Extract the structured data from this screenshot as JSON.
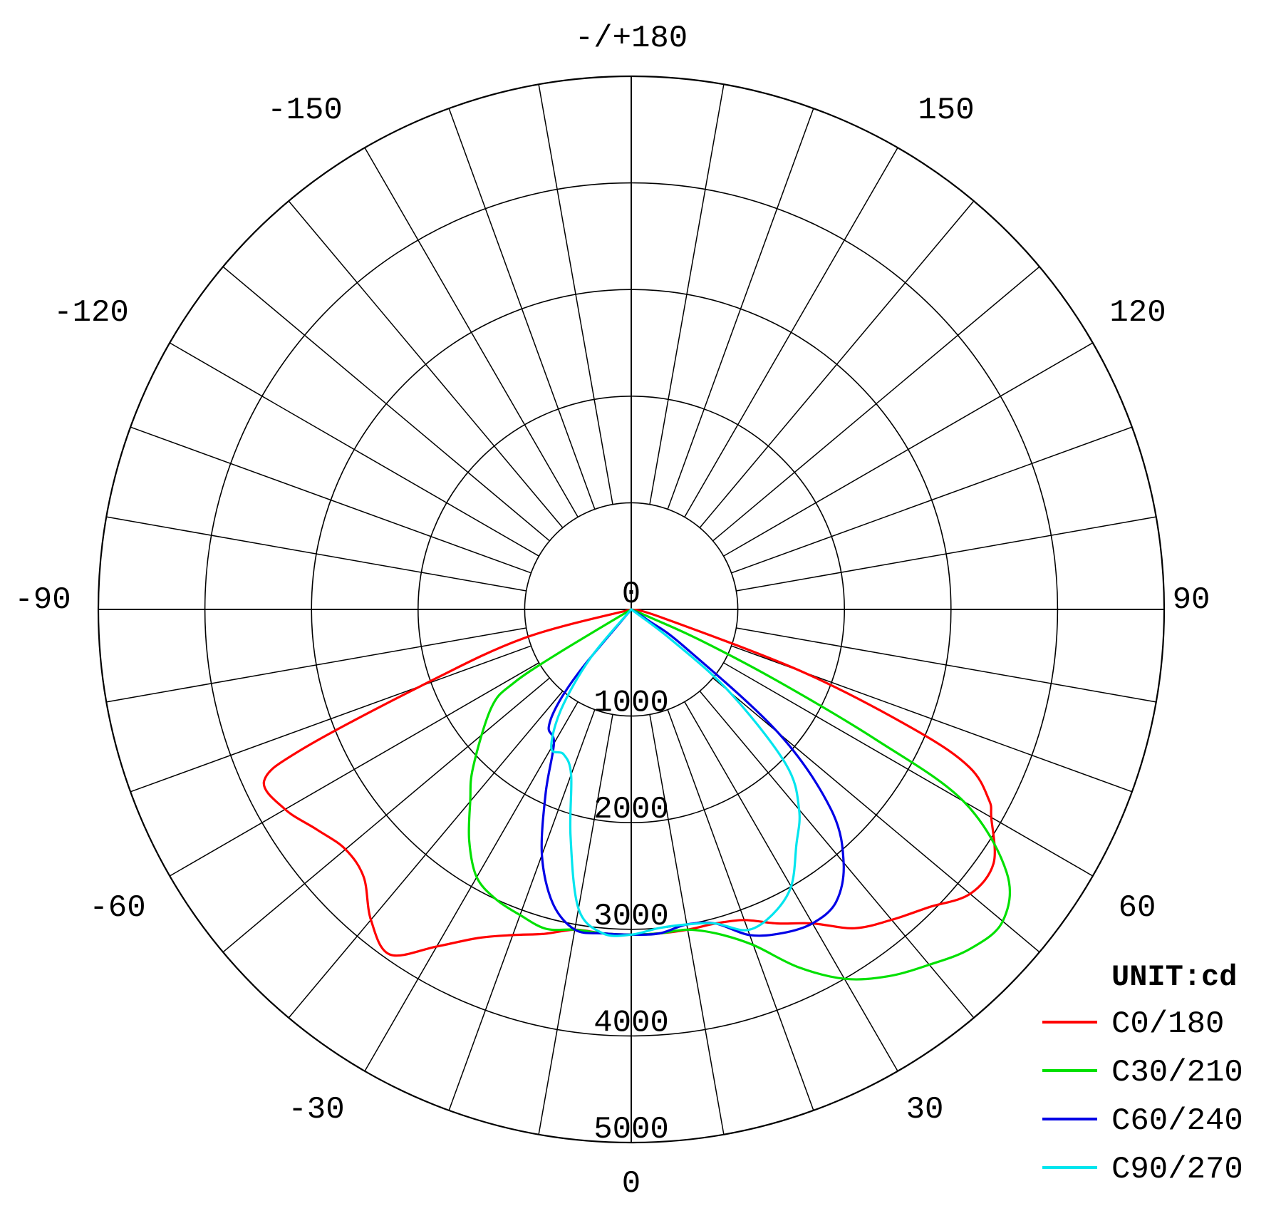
{
  "chart_data": {
    "type": "polar-line",
    "unit_label": "UNIT:cd",
    "radial_axis": {
      "min": 0,
      "max": 5000,
      "ticks": [
        0,
        1000,
        2000,
        3000,
        4000,
        5000
      ],
      "tick_labels": [
        "0",
        "1000",
        "2000",
        "3000",
        "4000",
        "5000"
      ]
    },
    "angular_axis": {
      "zero_direction": "down",
      "gridline_step": 10,
      "labels": [
        {
          "angle": 0,
          "text": "0"
        },
        {
          "angle": 30,
          "text": "30"
        },
        {
          "angle": 60,
          "text": "60"
        },
        {
          "angle": 90,
          "text": "90"
        },
        {
          "angle": 120,
          "text": "120"
        },
        {
          "angle": 150,
          "text": "150"
        },
        {
          "angle": 180,
          "text": "-/+180"
        },
        {
          "angle": -150,
          "text": "-150"
        },
        {
          "angle": -120,
          "text": "-120"
        },
        {
          "angle": -90,
          "text": "-90"
        },
        {
          "angle": -60,
          "text": "-60"
        },
        {
          "angle": -30,
          "text": "-30"
        }
      ]
    },
    "grid": true,
    "legend_position": "bottom-right",
    "series": [
      {
        "name": "C0/180",
        "color": "#ff0000",
        "points": [
          {
            "angle": -75,
            "value": 1050
          },
          {
            "angle": -70,
            "value": 2100
          },
          {
            "angle": -67,
            "value": 3350
          },
          {
            "angle": -65,
            "value": 3800
          },
          {
            "angle": -60,
            "value": 3750
          },
          {
            "angle": -55,
            "value": 3600
          },
          {
            "angle": -50,
            "value": 3500
          },
          {
            "angle": -45,
            "value": 3550
          },
          {
            "angle": -40,
            "value": 3800
          },
          {
            "angle": -35,
            "value": 3950
          },
          {
            "angle": -30,
            "value": 3650
          },
          {
            "angle": -25,
            "value": 3400
          },
          {
            "angle": -20,
            "value": 3250
          },
          {
            "angle": -15,
            "value": 3150
          },
          {
            "angle": -10,
            "value": 3050
          },
          {
            "angle": -5,
            "value": 3050
          },
          {
            "angle": 0,
            "value": 3050
          },
          {
            "angle": 5,
            "value": 3050
          },
          {
            "angle": 10,
            "value": 3050
          },
          {
            "angle": 15,
            "value": 3050
          },
          {
            "angle": 20,
            "value": 3100
          },
          {
            "angle": 25,
            "value": 3250
          },
          {
            "angle": 30,
            "value": 3400
          },
          {
            "angle": 35,
            "value": 3650
          },
          {
            "angle": 40,
            "value": 3800
          },
          {
            "angle": 45,
            "value": 3950
          },
          {
            "angle": 50,
            "value": 4150
          },
          {
            "angle": 55,
            "value": 4150
          },
          {
            "angle": 60,
            "value": 3900
          },
          {
            "angle": 62,
            "value": 3800
          },
          {
            "angle": 65,
            "value": 3500
          },
          {
            "angle": 67,
            "value": 2900
          },
          {
            "angle": 70,
            "value": 1700
          },
          {
            "angle": 75,
            "value": 300
          }
        ]
      },
      {
        "name": "C30/210",
        "color": "#00e000",
        "points": [
          {
            "angle": -59,
            "value": 800
          },
          {
            "angle": -58,
            "value": 1300
          },
          {
            "angle": -55,
            "value": 1600
          },
          {
            "angle": -45,
            "value": 2100
          },
          {
            "angle": -40,
            "value": 2350
          },
          {
            "angle": -35,
            "value": 2650
          },
          {
            "angle": -30,
            "value": 2900
          },
          {
            "angle": -25,
            "value": 3000
          },
          {
            "angle": -20,
            "value": 3050
          },
          {
            "angle": -15,
            "value": 3100
          },
          {
            "angle": -10,
            "value": 3050
          },
          {
            "angle": -5,
            "value": 3050
          },
          {
            "angle": 0,
            "value": 3050
          },
          {
            "angle": 5,
            "value": 3050
          },
          {
            "angle": 10,
            "value": 3050
          },
          {
            "angle": 15,
            "value": 3150
          },
          {
            "angle": 20,
            "value": 3350
          },
          {
            "angle": 25,
            "value": 3700
          },
          {
            "angle": 30,
            "value": 4000
          },
          {
            "angle": 35,
            "value": 4200
          },
          {
            "angle": 40,
            "value": 4350
          },
          {
            "angle": 45,
            "value": 4500
          },
          {
            "angle": 50,
            "value": 4550
          },
          {
            "angle": 55,
            "value": 4300
          },
          {
            "angle": 60,
            "value": 3600
          },
          {
            "angle": 62,
            "value": 2600
          },
          {
            "angle": 64,
            "value": 1500
          },
          {
            "angle": 66,
            "value": 700
          },
          {
            "angle": 67,
            "value": 200
          }
        ]
      },
      {
        "name": "C60/240",
        "color": "#0000e6",
        "points": [
          {
            "angle": -40,
            "value": 700
          },
          {
            "angle": -38,
            "value": 1100
          },
          {
            "angle": -35,
            "value": 1350
          },
          {
            "angle": -30,
            "value": 1450
          },
          {
            "angle": -25,
            "value": 1900
          },
          {
            "angle": -20,
            "value": 2450
          },
          {
            "angle": -15,
            "value": 2850
          },
          {
            "angle": -10,
            "value": 3050
          },
          {
            "angle": -5,
            "value": 3050
          },
          {
            "angle": 0,
            "value": 3050
          },
          {
            "angle": 5,
            "value": 3050
          },
          {
            "angle": 10,
            "value": 3000
          },
          {
            "angle": 15,
            "value": 3050
          },
          {
            "angle": 20,
            "value": 3250
          },
          {
            "angle": 25,
            "value": 3350
          },
          {
            "angle": 30,
            "value": 3400
          },
          {
            "angle": 35,
            "value": 3350
          },
          {
            "angle": 40,
            "value": 3100
          },
          {
            "angle": 45,
            "value": 2650
          },
          {
            "angle": 50,
            "value": 1800
          },
          {
            "angle": 55,
            "value": 600
          },
          {
            "angle": 57,
            "value": 200
          }
        ]
      },
      {
        "name": "C90/270",
        "color": "#00e5ee",
        "points": [
          {
            "angle": -40,
            "value": 600
          },
          {
            "angle": -35,
            "value": 1150
          },
          {
            "angle": -30,
            "value": 1500
          },
          {
            "angle": -25,
            "value": 1500
          },
          {
            "angle": -20,
            "value": 1650
          },
          {
            "angle": -15,
            "value": 2200
          },
          {
            "angle": -10,
            "value": 2850
          },
          {
            "angle": -5,
            "value": 3050
          },
          {
            "angle": 0,
            "value": 3050
          },
          {
            "angle": 5,
            "value": 3000
          },
          {
            "angle": 10,
            "value": 3000
          },
          {
            "angle": 15,
            "value": 3050
          },
          {
            "angle": 20,
            "value": 3200
          },
          {
            "angle": 25,
            "value": 3150
          },
          {
            "angle": 30,
            "value": 3000
          },
          {
            "angle": 35,
            "value": 2700
          },
          {
            "angle": 40,
            "value": 2450
          },
          {
            "angle": 45,
            "value": 2050
          },
          {
            "angle": 50,
            "value": 1200
          },
          {
            "angle": 53,
            "value": 450
          }
        ]
      }
    ]
  }
}
